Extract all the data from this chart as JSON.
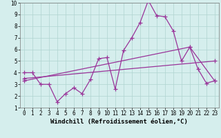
{
  "title": "",
  "xlabel": "Windchill (Refroidissement éolien,°C)",
  "ylabel": "",
  "background_color": "#d5eeed",
  "grid_color": "#afd4d0",
  "line_color": "#993399",
  "xlim": [
    -0.5,
    23.5
  ],
  "ylim": [
    1,
    10
  ],
  "yticks": [
    1,
    2,
    3,
    4,
    5,
    6,
    7,
    8,
    9,
    10
  ],
  "xticks": [
    0,
    1,
    2,
    3,
    4,
    5,
    6,
    7,
    8,
    9,
    10,
    11,
    12,
    13,
    14,
    15,
    16,
    17,
    18,
    19,
    20,
    21,
    22,
    23
  ],
  "series1_x": [
    0,
    1,
    2,
    3,
    4,
    5,
    6,
    7,
    8,
    9,
    10,
    11,
    12,
    13,
    14,
    15,
    16,
    17,
    18,
    19,
    20,
    21,
    22,
    23
  ],
  "series1_y": [
    4.0,
    4.0,
    3.0,
    3.0,
    1.5,
    2.2,
    2.7,
    2.2,
    3.4,
    5.2,
    5.3,
    2.6,
    5.9,
    7.0,
    8.3,
    10.2,
    8.9,
    8.8,
    7.6,
    5.0,
    6.2,
    4.3,
    3.1,
    3.3
  ],
  "series2_x": [
    0,
    20,
    23
  ],
  "series2_y": [
    3.3,
    6.2,
    3.3
  ],
  "series3_x": [
    0,
    23
  ],
  "series3_y": [
    3.5,
    5.0
  ],
  "figsize": [
    3.2,
    2.0
  ],
  "dpi": 100,
  "tick_fontsize": 5.5,
  "xlabel_fontsize": 6.5,
  "marker": "+",
  "marker_size": 4,
  "linewidth": 0.9
}
